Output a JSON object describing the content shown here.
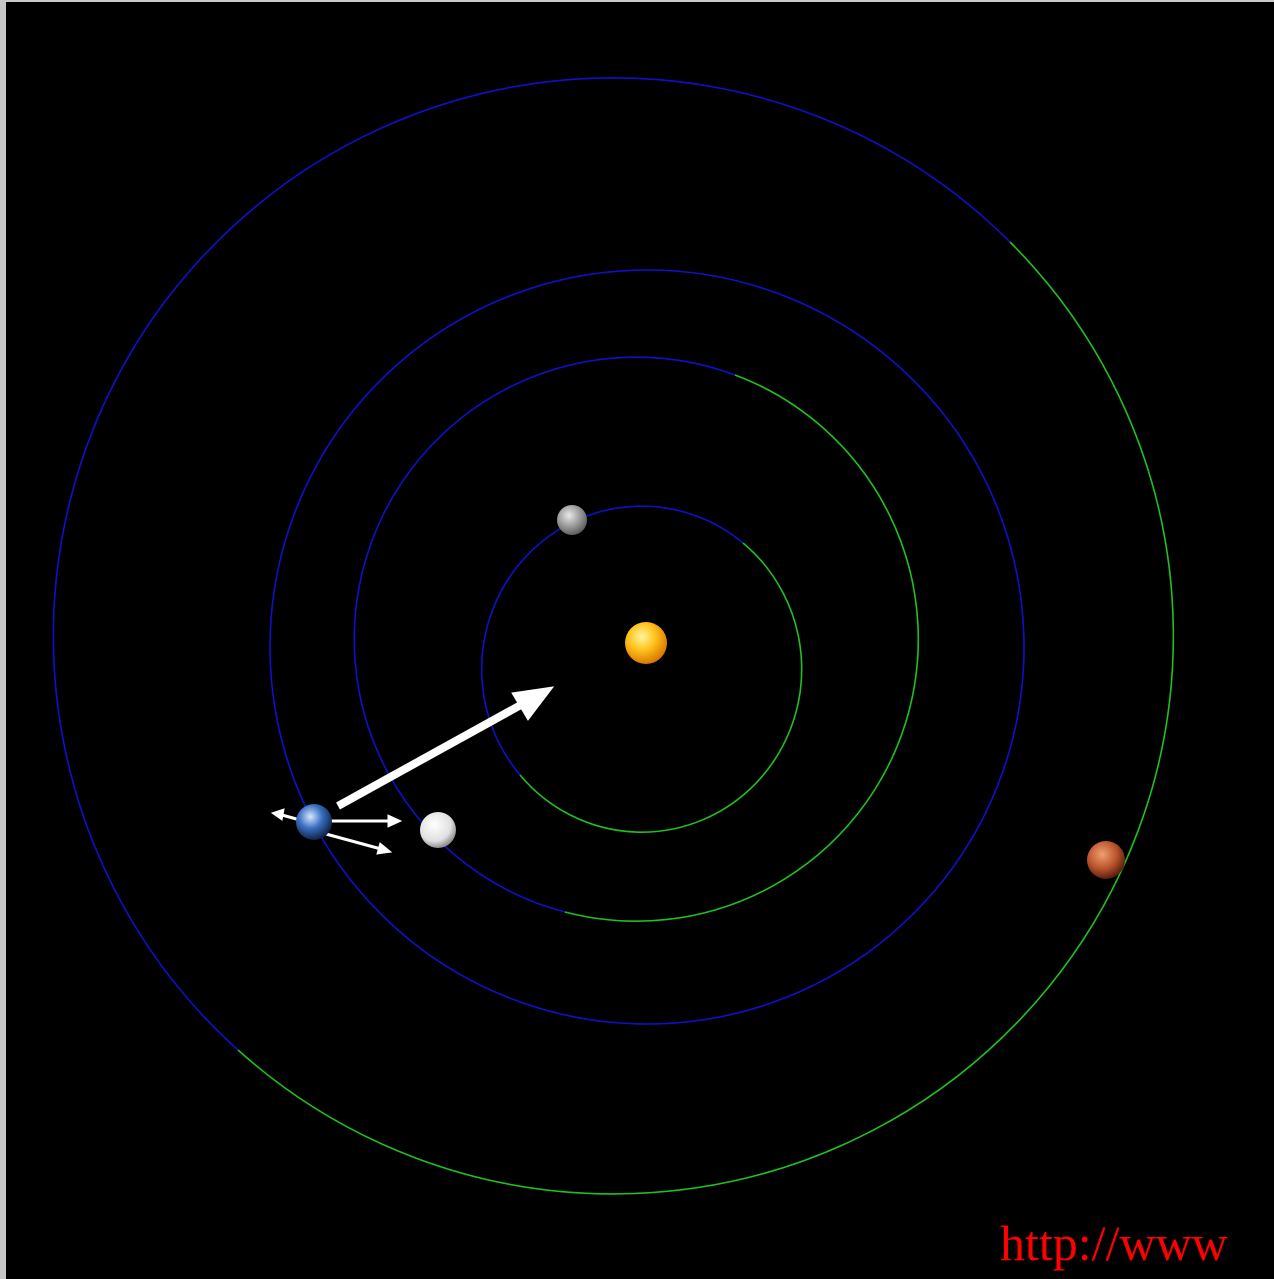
{
  "footer_url": "http://www"
}
